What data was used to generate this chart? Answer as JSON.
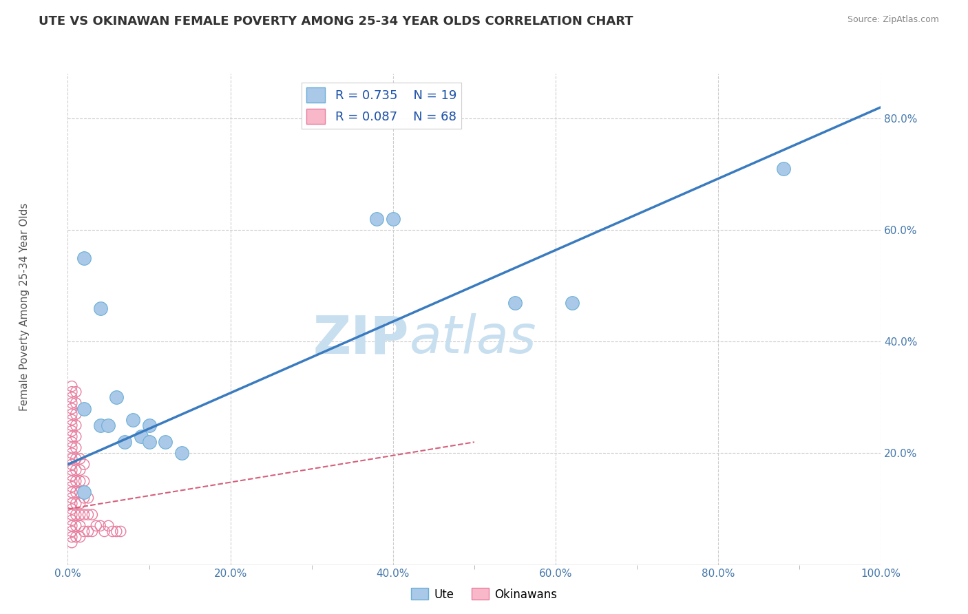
{
  "title": "UTE VS OKINAWAN FEMALE POVERTY AMONG 25-34 YEAR OLDS CORRELATION CHART",
  "source": "Source: ZipAtlas.com",
  "ylabel": "Female Poverty Among 25-34 Year Olds",
  "xlim": [
    0.0,
    1.0
  ],
  "ylim": [
    0.0,
    0.88
  ],
  "xtick_labels": [
    "0.0%",
    "",
    "",
    "",
    "",
    "",
    "",
    "",
    "",
    "",
    "20.0%",
    "",
    "",
    "",
    "",
    "",
    "",
    "",
    "",
    "",
    "40.0%",
    "",
    "",
    "",
    "",
    "",
    "",
    "",
    "",
    "",
    "60.0%",
    "",
    "",
    "",
    "",
    "",
    "",
    "",
    "",
    "",
    "80.0%",
    "",
    "",
    "",
    "",
    "",
    "",
    "",
    "",
    "",
    "100.0%"
  ],
  "xtick_values": [
    0.0,
    0.02,
    0.04,
    0.06,
    0.08,
    0.1,
    0.12,
    0.14,
    0.16,
    0.18,
    0.2,
    0.22,
    0.24,
    0.26,
    0.28,
    0.3,
    0.32,
    0.34,
    0.36,
    0.38,
    0.4,
    0.42,
    0.44,
    0.46,
    0.48,
    0.5,
    0.52,
    0.54,
    0.56,
    0.58,
    0.6,
    0.62,
    0.64,
    0.66,
    0.68,
    0.7,
    0.72,
    0.74,
    0.76,
    0.78,
    0.8,
    0.82,
    0.84,
    0.86,
    0.88,
    0.9,
    0.92,
    0.94,
    0.96,
    0.98,
    1.0
  ],
  "xtick_major": [
    0.0,
    0.2,
    0.4,
    0.6,
    0.8,
    1.0
  ],
  "xtick_major_labels": [
    "0.0%",
    "20.0%",
    "40.0%",
    "60.0%",
    "80.0%",
    "100.0%"
  ],
  "ytick_values": [
    0.2,
    0.4,
    0.6,
    0.8
  ],
  "ytick_labels": [
    "20.0%",
    "40.0%",
    "60.0%",
    "80.0%"
  ],
  "legend_R_ute": "R = 0.735",
  "legend_N_ute": "N = 19",
  "legend_R_okinawan": "R = 0.087",
  "legend_N_okinawan": "N = 68",
  "ute_color": "#aac9e8",
  "ute_edge_color": "#6aaed6",
  "okinawan_color": "#f9b8ca",
  "okinawan_edge_color": "#e87fa0",
  "trendline_ute_color": "#3a7bbf",
  "trendline_okinawan_color": "#d4607a",
  "watermark_zip": "ZIP",
  "watermark_atlas": "atlas",
  "watermark_color": "#c8dff0",
  "background_color": "#ffffff",
  "grid_color": "#cccccc",
  "ute_scatter_x": [
    0.02,
    0.02,
    0.02,
    0.04,
    0.04,
    0.05,
    0.06,
    0.07,
    0.08,
    0.09,
    0.1,
    0.1,
    0.12,
    0.14,
    0.38,
    0.4,
    0.55,
    0.62,
    0.88
  ],
  "ute_scatter_y": [
    0.55,
    0.28,
    0.13,
    0.46,
    0.25,
    0.25,
    0.3,
    0.22,
    0.26,
    0.23,
    0.22,
    0.25,
    0.22,
    0.2,
    0.62,
    0.62,
    0.47,
    0.47,
    0.71
  ],
  "okinawan_scatter_x": [
    0.005,
    0.005,
    0.005,
    0.005,
    0.005,
    0.005,
    0.005,
    0.005,
    0.005,
    0.005,
    0.005,
    0.005,
    0.005,
    0.005,
    0.005,
    0.005,
    0.005,
    0.005,
    0.005,
    0.005,
    0.005,
    0.005,
    0.005,
    0.005,
    0.005,
    0.005,
    0.005,
    0.005,
    0.005,
    0.01,
    0.01,
    0.01,
    0.01,
    0.01,
    0.01,
    0.01,
    0.01,
    0.01,
    0.01,
    0.01,
    0.01,
    0.01,
    0.01,
    0.015,
    0.015,
    0.015,
    0.015,
    0.015,
    0.015,
    0.015,
    0.015,
    0.02,
    0.02,
    0.02,
    0.02,
    0.02,
    0.025,
    0.025,
    0.025,
    0.03,
    0.03,
    0.035,
    0.04,
    0.045,
    0.05,
    0.055,
    0.06,
    0.065
  ],
  "okinawan_scatter_y": [
    0.04,
    0.05,
    0.06,
    0.07,
    0.08,
    0.09,
    0.1,
    0.11,
    0.12,
    0.13,
    0.14,
    0.15,
    0.16,
    0.17,
    0.18,
    0.19,
    0.2,
    0.21,
    0.22,
    0.23,
    0.24,
    0.25,
    0.26,
    0.27,
    0.28,
    0.29,
    0.3,
    0.31,
    0.32,
    0.05,
    0.07,
    0.09,
    0.11,
    0.13,
    0.15,
    0.17,
    0.19,
    0.21,
    0.23,
    0.25,
    0.27,
    0.29,
    0.31,
    0.05,
    0.07,
    0.09,
    0.11,
    0.13,
    0.15,
    0.17,
    0.19,
    0.06,
    0.09,
    0.12,
    0.15,
    0.18,
    0.06,
    0.09,
    0.12,
    0.06,
    0.09,
    0.07,
    0.07,
    0.06,
    0.07,
    0.06,
    0.06,
    0.06
  ],
  "ute_trend_x": [
    0.0,
    1.0
  ],
  "ute_trend_y": [
    0.18,
    0.82
  ],
  "okinawan_trend_x": [
    0.0,
    0.5
  ],
  "okinawan_trend_y": [
    0.1,
    0.22
  ]
}
